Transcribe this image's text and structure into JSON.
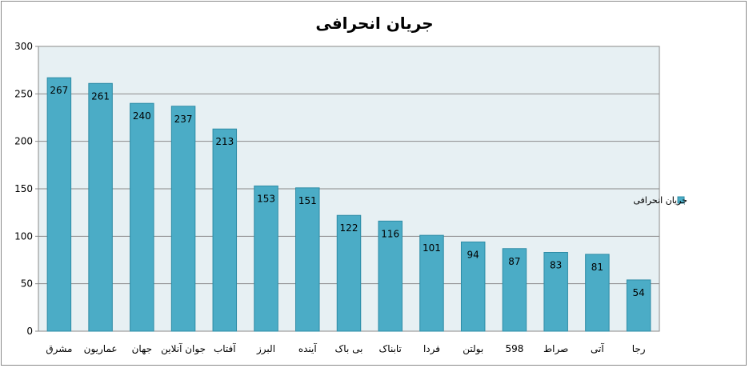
{
  "chart_data": {
    "type": "bar",
    "title": "جریان انحرافی",
    "categories": [
      "مشرق",
      "عماریون",
      "جهان",
      "جوان آنلاین",
      "آفتاب",
      "البرز",
      "آینده",
      "بی باک",
      "تابناک",
      "فردا",
      "بولتن",
      "598",
      "صراط",
      "آتی",
      "رجا"
    ],
    "series": [
      {
        "name": "جریان انحرافی",
        "color": "#4bacc6",
        "values": [
          267,
          261,
          240,
          237,
          213,
          153,
          151,
          122,
          116,
          101,
          94,
          87,
          83,
          81,
          54
        ]
      }
    ],
    "ylim": [
      0,
      300
    ],
    "yticks": [
      0,
      50,
      100,
      150,
      200,
      250,
      300
    ],
    "grid": true,
    "legend": "right",
    "plot_background": "#e7f0f3",
    "bar_border": "#2e8ca6"
  }
}
